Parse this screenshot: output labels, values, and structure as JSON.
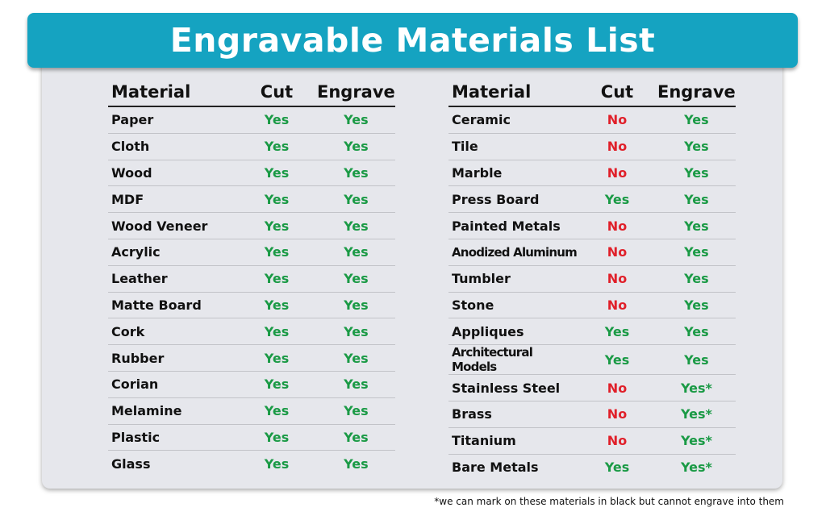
{
  "title": "Engravable Materials List",
  "headers": {
    "material": "Material",
    "cut": "Cut",
    "engrave": "Engrave"
  },
  "colors": {
    "banner": "#15a3c1",
    "yes": "#1a9a45",
    "no": "#e0202a",
    "card": "#e6e7ec"
  },
  "left_rows": [
    {
      "material": "Paper",
      "cut": "Yes",
      "engrave": "Yes"
    },
    {
      "material": "Cloth",
      "cut": "Yes",
      "engrave": "Yes"
    },
    {
      "material": "Wood",
      "cut": "Yes",
      "engrave": "Yes"
    },
    {
      "material": "MDF",
      "cut": "Yes",
      "engrave": "Yes"
    },
    {
      "material": "Wood Veneer",
      "cut": "Yes",
      "engrave": "Yes"
    },
    {
      "material": "Acrylic",
      "cut": "Yes",
      "engrave": "Yes"
    },
    {
      "material": "Leather",
      "cut": "Yes",
      "engrave": "Yes"
    },
    {
      "material": "Matte Board",
      "cut": "Yes",
      "engrave": "Yes"
    },
    {
      "material": "Cork",
      "cut": "Yes",
      "engrave": "Yes"
    },
    {
      "material": "Rubber",
      "cut": "Yes",
      "engrave": "Yes"
    },
    {
      "material": "Corian",
      "cut": "Yes",
      "engrave": "Yes"
    },
    {
      "material": "Melamine",
      "cut": "Yes",
      "engrave": "Yes"
    },
    {
      "material": "Plastic",
      "cut": "Yes",
      "engrave": "Yes"
    },
    {
      "material": "Glass",
      "cut": "Yes",
      "engrave": "Yes"
    }
  ],
  "right_rows": [
    {
      "material": "Ceramic",
      "cut": "No",
      "engrave": "Yes"
    },
    {
      "material": "Tile",
      "cut": "No",
      "engrave": "Yes"
    },
    {
      "material": "Marble",
      "cut": "No",
      "engrave": "Yes"
    },
    {
      "material": "Press Board",
      "cut": "Yes",
      "engrave": "Yes"
    },
    {
      "material": "Painted Metals",
      "cut": "No",
      "engrave": "Yes"
    },
    {
      "material": "Anodized Aluminum",
      "cut": "No",
      "engrave": "Yes"
    },
    {
      "material": "Tumbler",
      "cut": "No",
      "engrave": "Yes"
    },
    {
      "material": "Stone",
      "cut": "No",
      "engrave": "Yes"
    },
    {
      "material": "Appliques",
      "cut": "Yes",
      "engrave": "Yes"
    },
    {
      "material": "Architectural Models",
      "cut": "Yes",
      "engrave": "Yes"
    },
    {
      "material": "Stainless Steel",
      "cut": "No",
      "engrave": "Yes*"
    },
    {
      "material": "Brass",
      "cut": "No",
      "engrave": "Yes*"
    },
    {
      "material": "Titanium",
      "cut": "No",
      "engrave": "Yes*"
    },
    {
      "material": "Bare Metals",
      "cut": "Yes",
      "engrave": "Yes*"
    }
  ],
  "footnote": "*we can mark on these materials in black but cannot engrave into them"
}
